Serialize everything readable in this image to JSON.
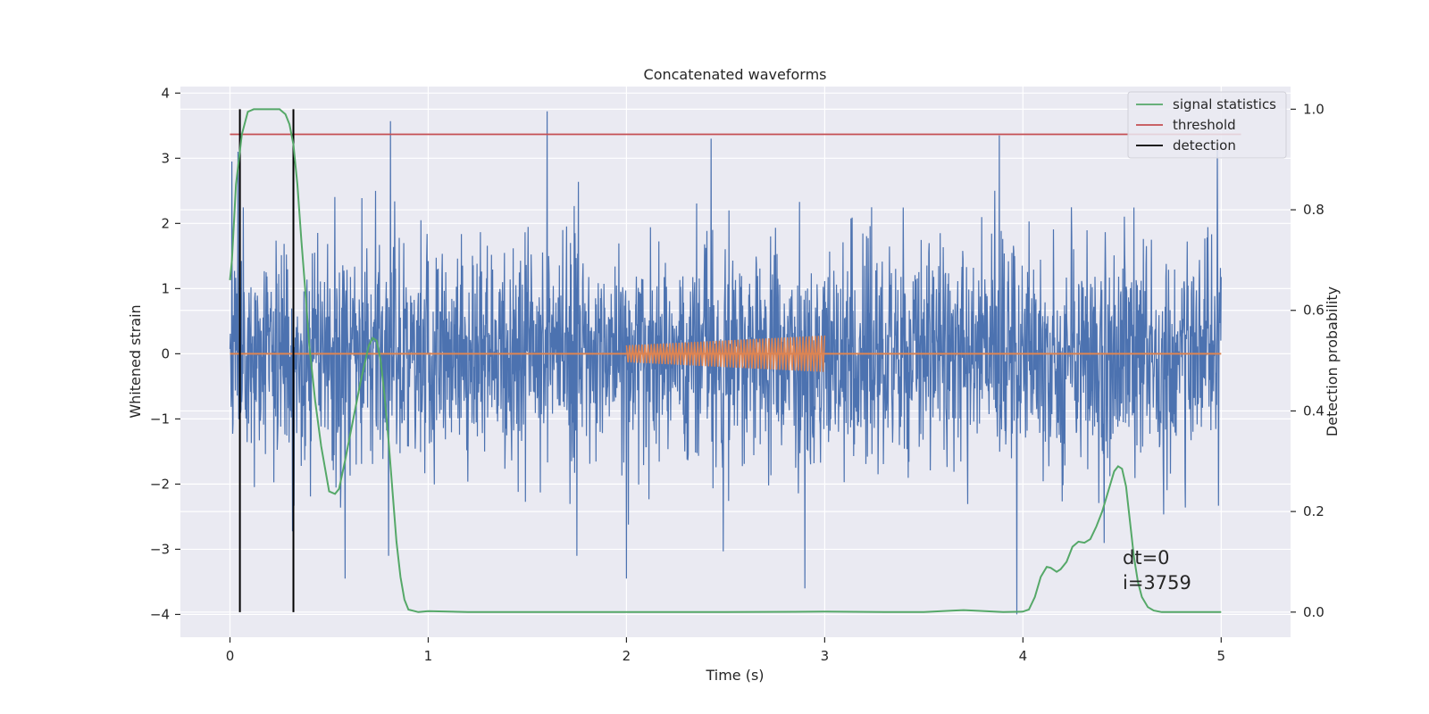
{
  "chart_data": {
    "type": "line",
    "title": "Concatenated waveforms",
    "xlabel": "Time (s)",
    "ylabel": "Whitened strain",
    "y2label": "Detection probability",
    "xlim": [
      -0.25,
      5.35
    ],
    "ylim": [
      -4.35,
      4.1
    ],
    "y2lim": [
      -0.05,
      1.045
    ],
    "xticks": [
      0,
      1,
      2,
      3,
      4,
      5
    ],
    "yticks": [
      -4,
      -3,
      -2,
      -1,
      0,
      1,
      2,
      3,
      4
    ],
    "y2ticks": [
      0.0,
      0.2,
      0.4,
      0.6,
      0.8,
      1.0
    ],
    "y2tick_labels": [
      "0.0",
      "0.2",
      "0.4",
      "0.6",
      "0.8",
      "1.0"
    ],
    "grid": true,
    "legend_position": "top-right",
    "colors": {
      "background": "#eaeaf2",
      "grid": "#ffffff",
      "strain": "#4c72b0",
      "injected": "#dd8452",
      "signal_statistics": "#55a868",
      "threshold": "#c44e52",
      "detection": "#000000"
    },
    "series": [
      {
        "key": "strain",
        "axis": "left",
        "x_range": [
          0,
          5
        ],
        "noise_rms": 0.85,
        "spikes": [
          {
            "x": 0.01,
            "y": 2.95
          },
          {
            "x": 0.04,
            "y": 3.1
          },
          {
            "x": 0.81,
            "y": 3.57
          },
          {
            "x": 1.6,
            "y": 3.72
          },
          {
            "x": 3.88,
            "y": 3.35
          },
          {
            "x": 4.98,
            "y": 3.2
          },
          {
            "x": 3.97,
            "y": -4.0
          },
          {
            "x": 2.0,
            "y": -3.45
          },
          {
            "x": 2.9,
            "y": -3.6
          },
          {
            "x": 0.32,
            "y": -3.4
          },
          {
            "x": 0.58,
            "y": -3.45
          },
          {
            "x": 0.8,
            "y": -3.1
          },
          {
            "x": 1.75,
            "y": -3.1
          }
        ]
      },
      {
        "key": "injected",
        "axis": "left",
        "segment": [
          2.0,
          3.0
        ],
        "amplitude_start": 0.13,
        "amplitude_end": 0.28,
        "baseline": 0
      },
      {
        "key": "signal_statistics",
        "name": "signal statistics",
        "axis": "right",
        "x": [
          0.0,
          0.01,
          0.03,
          0.06,
          0.09,
          0.12,
          0.15,
          0.2,
          0.25,
          0.28,
          0.3,
          0.32,
          0.34,
          0.36,
          0.38,
          0.4,
          0.43,
          0.46,
          0.5,
          0.53,
          0.55,
          0.58,
          0.62,
          0.66,
          0.7,
          0.72,
          0.74,
          0.76,
          0.78,
          0.8,
          0.82,
          0.84,
          0.86,
          0.88,
          0.9,
          0.95,
          1.0,
          1.2,
          1.5,
          2.0,
          2.5,
          3.0,
          3.3,
          3.5,
          3.65,
          3.7,
          3.75,
          3.9,
          4.0,
          4.03,
          4.06,
          4.09,
          4.12,
          4.14,
          4.17,
          4.19,
          4.22,
          4.25,
          4.28,
          4.31,
          4.34,
          4.37,
          4.4,
          4.43,
          4.46,
          4.48,
          4.5,
          4.52,
          4.54,
          4.56,
          4.58,
          4.6,
          4.63,
          4.66,
          4.7,
          4.8,
          4.9,
          5.0
        ],
        "y": [
          0.66,
          0.7,
          0.85,
          0.95,
          0.995,
          1.0,
          1.0,
          1.0,
          1.0,
          0.99,
          0.97,
          0.93,
          0.85,
          0.74,
          0.64,
          0.53,
          0.42,
          0.33,
          0.24,
          0.235,
          0.245,
          0.3,
          0.38,
          0.46,
          0.53,
          0.545,
          0.54,
          0.5,
          0.43,
          0.34,
          0.24,
          0.14,
          0.07,
          0.025,
          0.005,
          0.0,
          0.002,
          0.0,
          0.0,
          0.0,
          0.0,
          0.001,
          0.0,
          0.0,
          0.003,
          0.004,
          0.003,
          0.0,
          0.001,
          0.005,
          0.03,
          0.07,
          0.09,
          0.088,
          0.08,
          0.085,
          0.1,
          0.13,
          0.14,
          0.138,
          0.145,
          0.17,
          0.2,
          0.24,
          0.28,
          0.29,
          0.285,
          0.25,
          0.18,
          0.11,
          0.06,
          0.03,
          0.01,
          0.003,
          0.0,
          0.0,
          0.0,
          0.0
        ]
      },
      {
        "key": "threshold",
        "name": "threshold",
        "axis": "right",
        "x": [
          0,
          5.1
        ],
        "y": [
          0.95,
          0.95
        ]
      },
      {
        "key": "detection",
        "name": "detection",
        "axis": "right",
        "x": [
          0.05,
          0.32
        ],
        "y_range": [
          0.0,
          1.0
        ]
      }
    ],
    "legend": [
      "signal statistics",
      "threshold",
      "detection"
    ],
    "annotation": {
      "lines": [
        "dt=0",
        "i=3759"
      ],
      "x": 4.5,
      "y2": 0.1
    }
  }
}
